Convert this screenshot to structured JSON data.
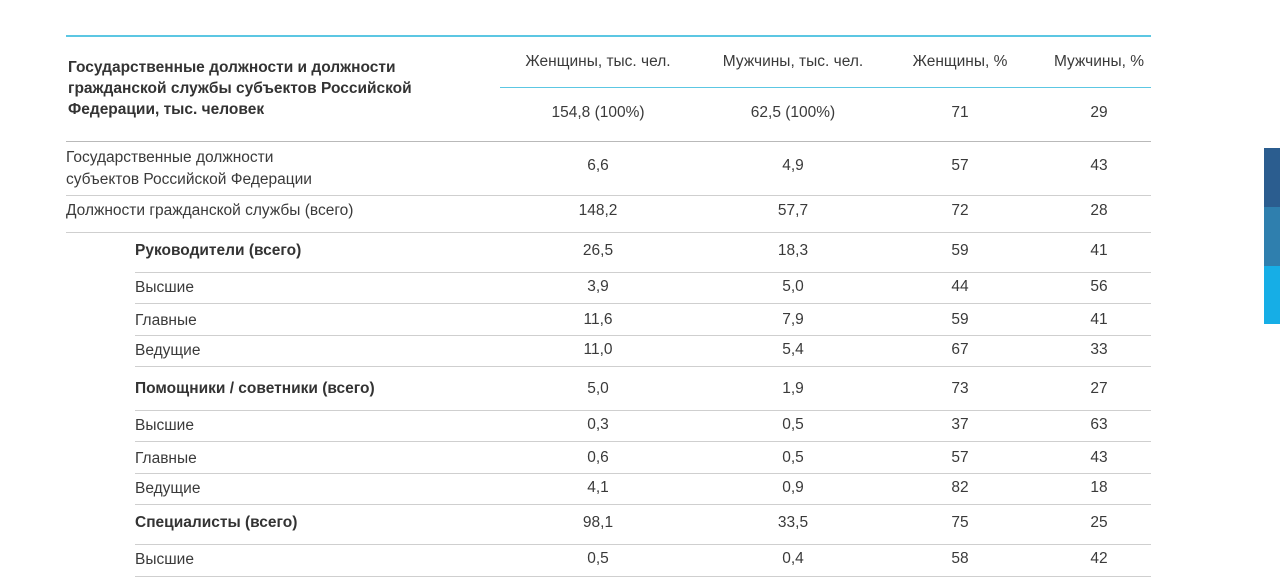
{
  "table": {
    "header_title": "Государственные должности и должности гражданской службы субъектов Российской Федерации, тыс. человек",
    "columns": [
      "Женщины, тыс. чел.",
      "Мужчины, тыс. чел.",
      "Женщины, %",
      "Мужчины, %"
    ],
    "totals": [
      "154,8 (100%)",
      "62,5 (100%)",
      "71",
      "29"
    ],
    "rows": [
      {
        "label_lines": [
          "Государственные должности",
          "субъектов Российской Федерации"
        ],
        "bold": false,
        "values": [
          "6,6",
          "4,9",
          "57",
          "43"
        ]
      },
      {
        "label_lines": [
          "Должности гражданской службы (всего)"
        ],
        "bold": false,
        "values": [
          "148,2",
          "57,7",
          "72",
          "28"
        ]
      },
      {
        "label_lines": [
          "Руководители (всего)"
        ],
        "bold": true,
        "values": [
          "26,5",
          "18,3",
          "59",
          "41"
        ]
      },
      {
        "label_lines": [
          "Высшие"
        ],
        "bold": false,
        "values": [
          "3,9",
          "5,0",
          "44",
          "56"
        ]
      },
      {
        "label_lines": [
          "Главные"
        ],
        "bold": false,
        "values": [
          "11,6",
          "7,9",
          "59",
          "41"
        ]
      },
      {
        "label_lines": [
          "Ведущие"
        ],
        "bold": false,
        "values": [
          "11,0",
          "5,4",
          "67",
          "33"
        ]
      },
      {
        "label_lines": [
          "Помощники / советники (всего)"
        ],
        "bold": true,
        "values": [
          "5,0",
          "1,9",
          "73",
          "27"
        ]
      },
      {
        "label_lines": [
          "Высшие"
        ],
        "bold": false,
        "values": [
          "0,3",
          "0,5",
          "37",
          "63"
        ]
      },
      {
        "label_lines": [
          "Главные"
        ],
        "bold": false,
        "values": [
          "0,6",
          "0,5",
          "57",
          "43"
        ]
      },
      {
        "label_lines": [
          "Ведущие"
        ],
        "bold": false,
        "values": [
          "4,1",
          "0,9",
          "82",
          "18"
        ]
      },
      {
        "label_lines": [
          "Специалисты (всего)"
        ],
        "bold": true,
        "values": [
          "98,1",
          "33,5",
          "75",
          "25"
        ]
      },
      {
        "label_lines": [
          "Высшие"
        ],
        "bold": false,
        "values": [
          "0,5",
          "0,4",
          "58",
          "42"
        ]
      }
    ]
  },
  "colors": {
    "accent_rule": "#5cc7e3",
    "side_tab_top": "#2b5d8f",
    "side_tab_mid": "#2f7fae",
    "side_tab_bottom": "#16aee6"
  }
}
